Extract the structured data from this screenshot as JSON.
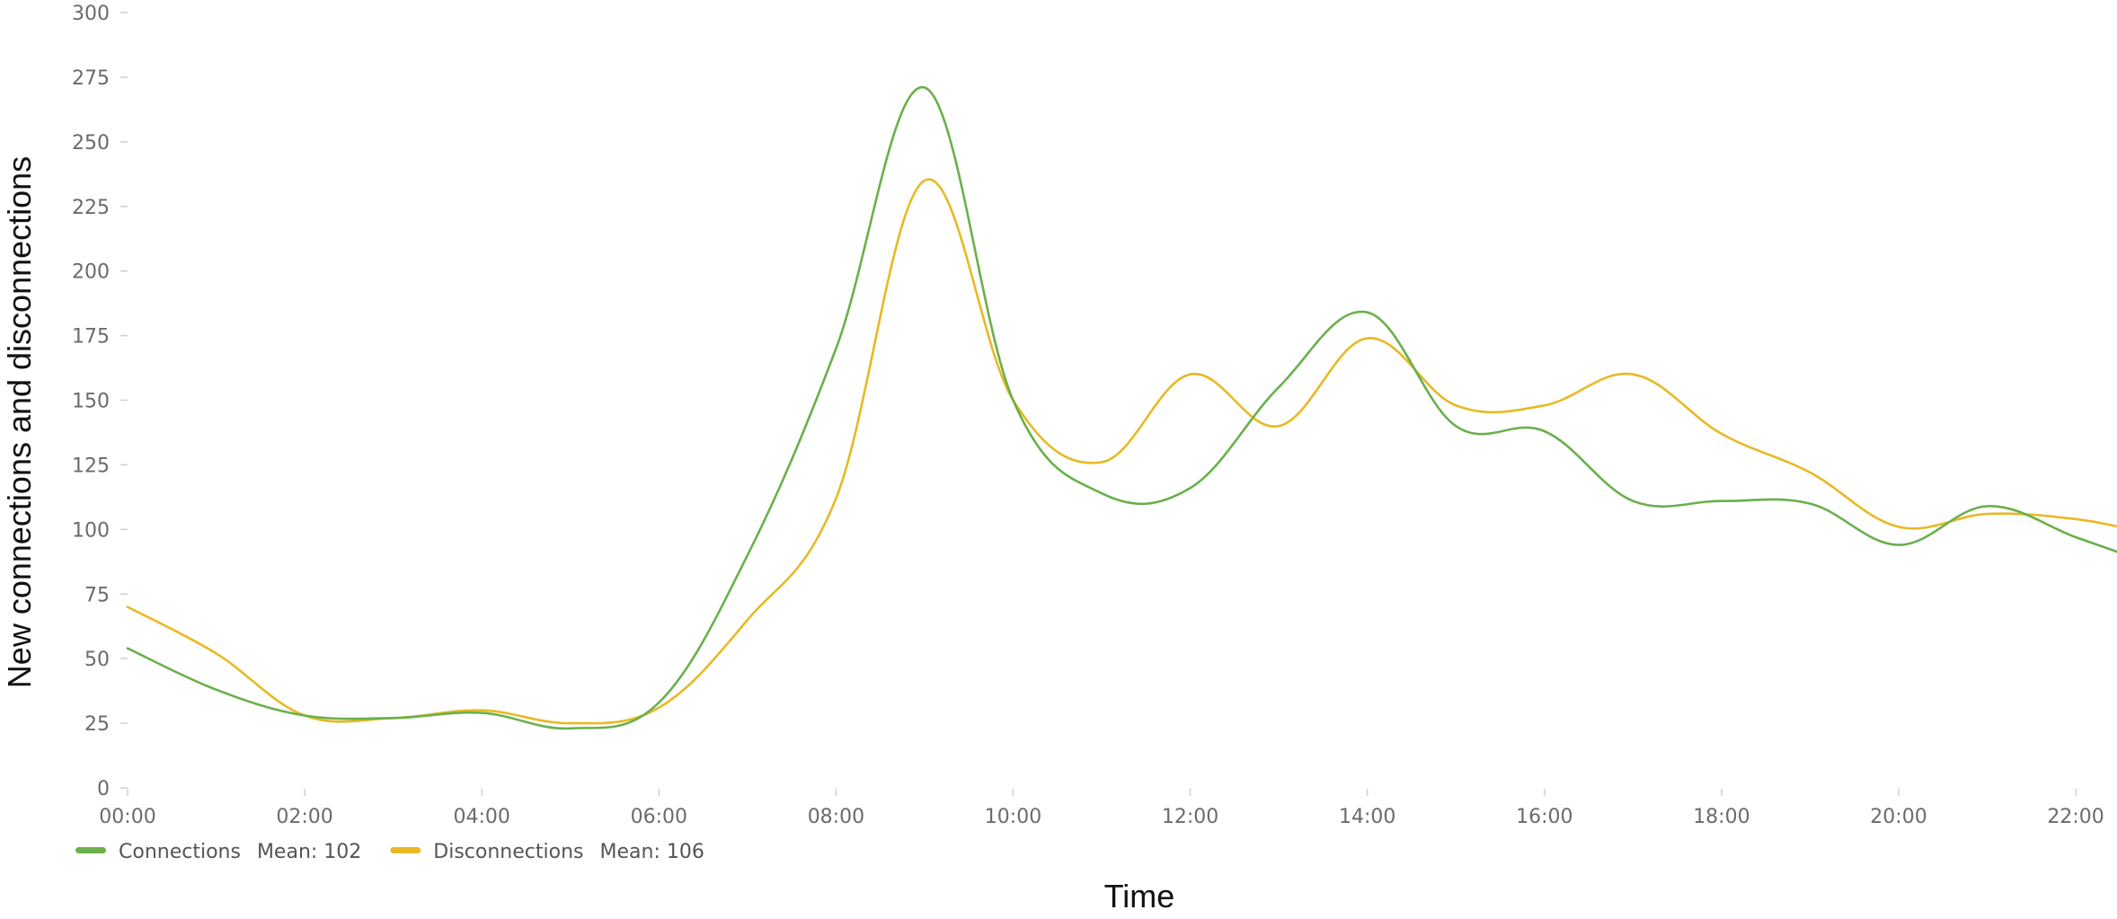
{
  "chart_data": {
    "type": "line",
    "xlabel": "Time",
    "ylabel": "New connections and disconnections",
    "ylim": [
      0,
      300
    ],
    "yticks": [
      "0",
      "25",
      "50",
      "75",
      "100",
      "125",
      "150",
      "175",
      "200",
      "225",
      "250",
      "275",
      "300"
    ],
    "xticks": [
      "00:00",
      "02:00",
      "04:00",
      "06:00",
      "08:00",
      "10:00",
      "12:00",
      "14:00",
      "16:00",
      "18:00",
      "20:00",
      "22:00"
    ],
    "x": [
      "00:00",
      "01:00",
      "02:00",
      "03:00",
      "04:00",
      "05:00",
      "06:00",
      "07:00",
      "08:00",
      "09:00",
      "10:00",
      "11:00",
      "12:00",
      "13:00",
      "14:00",
      "15:00",
      "16:00",
      "17:00",
      "18:00",
      "19:00",
      "20:00",
      "21:00",
      "22:00",
      "22:45"
    ],
    "series": [
      {
        "name": "Connections",
        "color": "#6ab04c",
        "values": [
          54,
          38,
          28,
          27,
          29,
          23,
          33,
          90,
          170,
          271,
          150,
          114,
          116,
          155,
          184,
          140,
          138,
          111,
          111,
          110,
          94,
          109,
          97,
          88
        ]
      },
      {
        "name": "Disconnections",
        "color": "#e8b923",
        "values": [
          70,
          52,
          28,
          27,
          30,
          25,
          31,
          65,
          112,
          235,
          150,
          126,
          160,
          140,
          174,
          148,
          148,
          160,
          137,
          122,
          101,
          106,
          104,
          99
        ]
      }
    ],
    "legend": [
      {
        "name": "Connections",
        "mean": "Mean: 102",
        "color": "#6ab04c"
      },
      {
        "name": "Disconnections",
        "mean": "Mean: 106",
        "color": "#e8b923"
      }
    ],
    "legend_position": "bottom-left",
    "grid": false
  }
}
